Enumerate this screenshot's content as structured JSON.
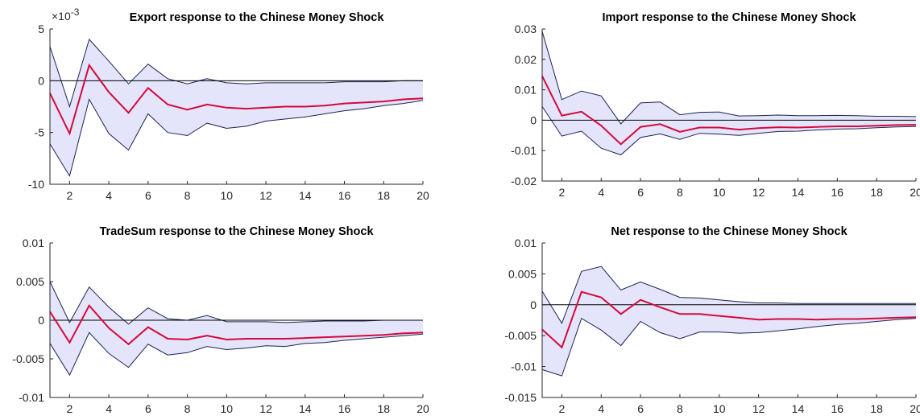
{
  "colors": {
    "band_fill": "#e4e4fb",
    "band_edge": "#1c2450",
    "median": "#d40a3c",
    "zero_line": "#000000",
    "axis": "#262626"
  },
  "chart_data": [
    {
      "type": "line",
      "title": "Export response to the Chinese Money Shock",
      "exponent_label": "×10",
      "exponent_power": "-3",
      "x": [
        1,
        2,
        3,
        4,
        5,
        6,
        7,
        8,
        9,
        10,
        11,
        12,
        13,
        14,
        15,
        16,
        17,
        18,
        19,
        20
      ],
      "xlim": [
        1,
        20
      ],
      "ylim": [
        -10,
        5
      ],
      "xticks": [
        2,
        4,
        6,
        8,
        10,
        12,
        14,
        16,
        18,
        20
      ],
      "yticks": [
        -10,
        -5,
        0,
        5
      ],
      "ytick_labels": [
        "-10",
        "-5",
        "0",
        "5"
      ],
      "series": [
        {
          "role": "upper",
          "values": [
            3.3,
            -2.5,
            4.0,
            1.9,
            -0.3,
            1.6,
            0.2,
            -0.3,
            0.2,
            -0.2,
            -0.3,
            -0.2,
            -0.2,
            -0.2,
            -0.2,
            -0.1,
            -0.1,
            -0.1,
            0.0,
            0.0
          ]
        },
        {
          "role": "median",
          "values": [
            -1.2,
            -5.1,
            1.5,
            -1.1,
            -3.1,
            -0.7,
            -2.3,
            -2.8,
            -2.3,
            -2.6,
            -2.7,
            -2.6,
            -2.5,
            -2.5,
            -2.4,
            -2.2,
            -2.1,
            -2.0,
            -1.8,
            -1.7
          ]
        },
        {
          "role": "lower",
          "values": [
            -6.1,
            -9.2,
            -1.8,
            -5.1,
            -6.7,
            -3.2,
            -5.0,
            -5.3,
            -4.1,
            -4.6,
            -4.4,
            -3.9,
            -3.7,
            -3.5,
            -3.2,
            -2.9,
            -2.7,
            -2.4,
            -2.2,
            -1.9
          ]
        }
      ]
    },
    {
      "type": "line",
      "title": "Import response to the Chinese Money Shock",
      "x": [
        1,
        2,
        3,
        4,
        5,
        6,
        7,
        8,
        9,
        10,
        11,
        12,
        13,
        14,
        15,
        16,
        17,
        18,
        19,
        20
      ],
      "xlim": [
        1,
        20
      ],
      "ylim": [
        -0.02,
        0.03
      ],
      "xticks": [
        2,
        4,
        6,
        8,
        10,
        12,
        14,
        16,
        18,
        20
      ],
      "yticks": [
        -0.02,
        -0.01,
        0,
        0.01,
        0.02,
        0.03
      ],
      "ytick_labels": [
        "-0.02",
        "-0.01",
        "0",
        "0.01",
        "0.02",
        "0.03"
      ],
      "series": [
        {
          "role": "upper",
          "values": [
            0.0292,
            0.0068,
            0.0096,
            0.008,
            -0.0012,
            0.0057,
            0.006,
            0.0018,
            0.0026,
            0.0027,
            0.0014,
            0.0015,
            0.0017,
            0.0015,
            0.0015,
            0.0016,
            0.0015,
            0.0013,
            0.0013,
            0.0012
          ]
        },
        {
          "role": "median",
          "values": [
            0.0145,
            0.0015,
            0.0028,
            -0.0018,
            -0.0079,
            -0.0022,
            -0.0013,
            -0.0038,
            -0.0024,
            -0.0024,
            -0.0031,
            -0.0026,
            -0.0023,
            -0.0024,
            -0.0022,
            -0.002,
            -0.002,
            -0.0018,
            -0.0016,
            -0.0015
          ]
        },
        {
          "role": "lower",
          "values": [
            0.0045,
            -0.0052,
            -0.0036,
            -0.0092,
            -0.0114,
            -0.0057,
            -0.0045,
            -0.0063,
            -0.0043,
            -0.0046,
            -0.005,
            -0.0043,
            -0.0037,
            -0.0036,
            -0.0032,
            -0.0029,
            -0.0028,
            -0.0025,
            -0.0022,
            -0.0021
          ]
        }
      ]
    },
    {
      "type": "line",
      "title": "TradeSum response to the Chinese Money Shock",
      "x": [
        1,
        2,
        3,
        4,
        5,
        6,
        7,
        8,
        9,
        10,
        11,
        12,
        13,
        14,
        15,
        16,
        17,
        18,
        19,
        20
      ],
      "xlim": [
        1,
        20
      ],
      "ylim": [
        -0.01,
        0.01
      ],
      "xticks": [
        2,
        4,
        6,
        8,
        10,
        12,
        14,
        16,
        18,
        20
      ],
      "yticks": [
        -0.01,
        -0.005,
        0,
        0.005,
        0.01
      ],
      "ytick_labels": [
        "-0.01",
        "-0.005",
        "0",
        "0.005",
        "0.01"
      ],
      "series": [
        {
          "role": "upper",
          "values": [
            0.005,
            -0.0003,
            0.0043,
            0.0017,
            -0.0005,
            0.0016,
            0.0002,
            0.0,
            0.0006,
            -0.0002,
            -0.0002,
            -0.0002,
            -0.0003,
            -0.0002,
            -0.0001,
            -0.0001,
            -0.0001,
            0.0,
            0.0,
            0.0
          ]
        },
        {
          "role": "median",
          "values": [
            0.0011,
            -0.0029,
            0.0019,
            -0.001,
            -0.0031,
            -0.0009,
            -0.0024,
            -0.0025,
            -0.002,
            -0.0025,
            -0.0024,
            -0.0024,
            -0.0024,
            -0.0023,
            -0.0022,
            -0.0021,
            -0.002,
            -0.0019,
            -0.0017,
            -0.0016
          ]
        },
        {
          "role": "lower",
          "values": [
            -0.003,
            -0.0071,
            -0.0016,
            -0.0043,
            -0.0061,
            -0.0031,
            -0.0045,
            -0.0042,
            -0.0034,
            -0.0038,
            -0.0036,
            -0.0033,
            -0.0034,
            -0.003,
            -0.0029,
            -0.0026,
            -0.0024,
            -0.0022,
            -0.002,
            -0.0018
          ]
        }
      ]
    },
    {
      "type": "line",
      "title": "Net response to the Chinese Money Shock",
      "x": [
        1,
        2,
        3,
        4,
        5,
        6,
        7,
        8,
        9,
        10,
        11,
        12,
        13,
        14,
        15,
        16,
        17,
        18,
        19,
        20
      ],
      "xlim": [
        1,
        20
      ],
      "ylim": [
        -0.015,
        0.01
      ],
      "xticks": [
        2,
        4,
        6,
        8,
        10,
        12,
        14,
        16,
        18,
        20
      ],
      "yticks": [
        -0.015,
        -0.01,
        -0.005,
        0,
        0.005,
        0.01
      ],
      "ytick_labels": [
        "-0.015",
        "-0.01",
        "-0.005",
        "0",
        "0.005",
        "0.01"
      ],
      "series": [
        {
          "role": "upper",
          "values": [
            0.0022,
            -0.003,
            0.0054,
            0.0062,
            0.0024,
            0.0037,
            0.0025,
            0.0012,
            0.0011,
            0.0008,
            0.0005,
            0.0003,
            0.0003,
            0.0002,
            0.0002,
            0.0002,
            0.0002,
            0.0002,
            0.0002,
            0.0002
          ]
        },
        {
          "role": "median",
          "values": [
            -0.004,
            -0.0069,
            0.0021,
            0.0012,
            -0.0015,
            0.0008,
            -0.0004,
            -0.0015,
            -0.0015,
            -0.0018,
            -0.0021,
            -0.0024,
            -0.0023,
            -0.0023,
            -0.0024,
            -0.0023,
            -0.0023,
            -0.0022,
            -0.0021,
            -0.002
          ]
        },
        {
          "role": "lower",
          "values": [
            -0.0105,
            -0.0115,
            -0.0022,
            -0.0041,
            -0.0066,
            -0.0027,
            -0.0045,
            -0.0055,
            -0.0044,
            -0.0044,
            -0.0046,
            -0.0045,
            -0.0042,
            -0.0039,
            -0.0035,
            -0.0032,
            -0.003,
            -0.0027,
            -0.0024,
            -0.0022
          ]
        }
      ]
    }
  ]
}
